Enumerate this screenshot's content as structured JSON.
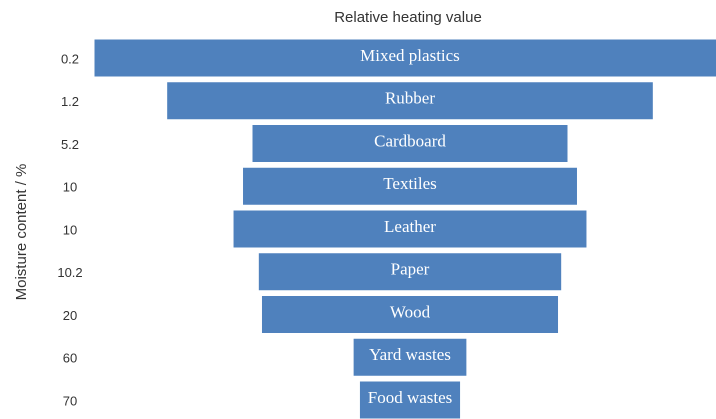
{
  "chart_data": {
    "type": "funnel",
    "title": "Relative heating value",
    "y_label": "Moisture content / %",
    "categories": [
      "0.2",
      "1.2",
      "5.2",
      "10",
      "10",
      "10.2",
      "20",
      "60",
      "70"
    ],
    "bar_labels": [
      "Mixed plastics",
      "Rubber",
      "Cardboard",
      "Textiles",
      "Leather",
      "Paper",
      "Wood",
      "Yard wastes",
      "Food wastes"
    ],
    "values": [
      100,
      77,
      50,
      53,
      56,
      48,
      47,
      18,
      16
    ],
    "color": "#4f81bd"
  }
}
